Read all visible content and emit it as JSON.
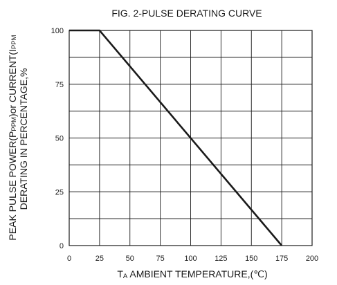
{
  "chart_data": {
    "type": "line",
    "title": "FIG. 2-PULSE DERATING CURVE",
    "xlabel": {
      "prefix": "T",
      "subscript": "A",
      "text": " AMBIENT TEMPERATURE,(",
      "unit": "℃",
      "suffix": ")"
    },
    "ylabel": {
      "line1_parts": [
        "PEAK PULSE POWER(P",
        "PPM",
        ")or CURRENT(I",
        "PPM"
      ],
      "line2": "DERATING IN PERCENTAGE,%"
    },
    "xlim": [
      0,
      200
    ],
    "ylim": [
      0,
      100
    ],
    "xticks": [
      0,
      25,
      50,
      75,
      100,
      125,
      150,
      175,
      200
    ],
    "yticks": [
      0,
      25,
      50,
      75,
      100
    ],
    "grid": true,
    "series": [
      {
        "x": [
          0,
          25,
          175
        ],
        "y": [
          100,
          100,
          0
        ]
      }
    ]
  }
}
